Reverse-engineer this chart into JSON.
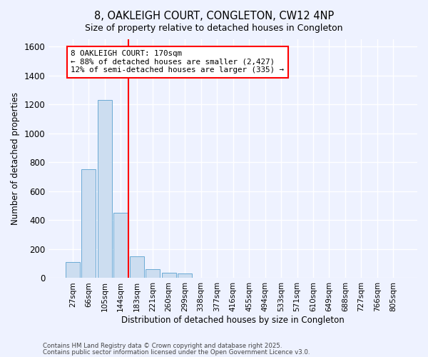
{
  "title_line1": "8, OAKLEIGH COURT, CONGLETON, CW12 4NP",
  "title_line2": "Size of property relative to detached houses in Congleton",
  "xlabel": "Distribution of detached houses by size in Congleton",
  "ylabel": "Number of detached properties",
  "categories": [
    "27sqm",
    "66sqm",
    "105sqm",
    "144sqm",
    "183sqm",
    "221sqm",
    "260sqm",
    "299sqm",
    "338sqm",
    "377sqm",
    "416sqm",
    "455sqm",
    "494sqm",
    "533sqm",
    "571sqm",
    "610sqm",
    "649sqm",
    "688sqm",
    "727sqm",
    "766sqm",
    "805sqm"
  ],
  "values": [
    110,
    750,
    1230,
    450,
    150,
    60,
    35,
    30,
    0,
    0,
    0,
    0,
    0,
    0,
    0,
    0,
    0,
    0,
    0,
    0,
    0
  ],
  "bar_color": "#ccddf0",
  "bar_edge_color": "#6aaad4",
  "vline_color": "red",
  "vline_index": 3.5,
  "annotation_text": "8 OAKLEIGH COURT: 170sqm\n← 88% of detached houses are smaller (2,427)\n12% of semi-detached houses are larger (335) →",
  "annotation_box_facecolor": "white",
  "annotation_box_edgecolor": "red",
  "ylim": [
    0,
    1650
  ],
  "yticks": [
    0,
    200,
    400,
    600,
    800,
    1000,
    1200,
    1400,
    1600
  ],
  "background_color": "#eef2ff",
  "grid_color": "white",
  "footer_line1": "Contains HM Land Registry data © Crown copyright and database right 2025.",
  "footer_line2": "Contains public sector information licensed under the Open Government Licence v3.0."
}
